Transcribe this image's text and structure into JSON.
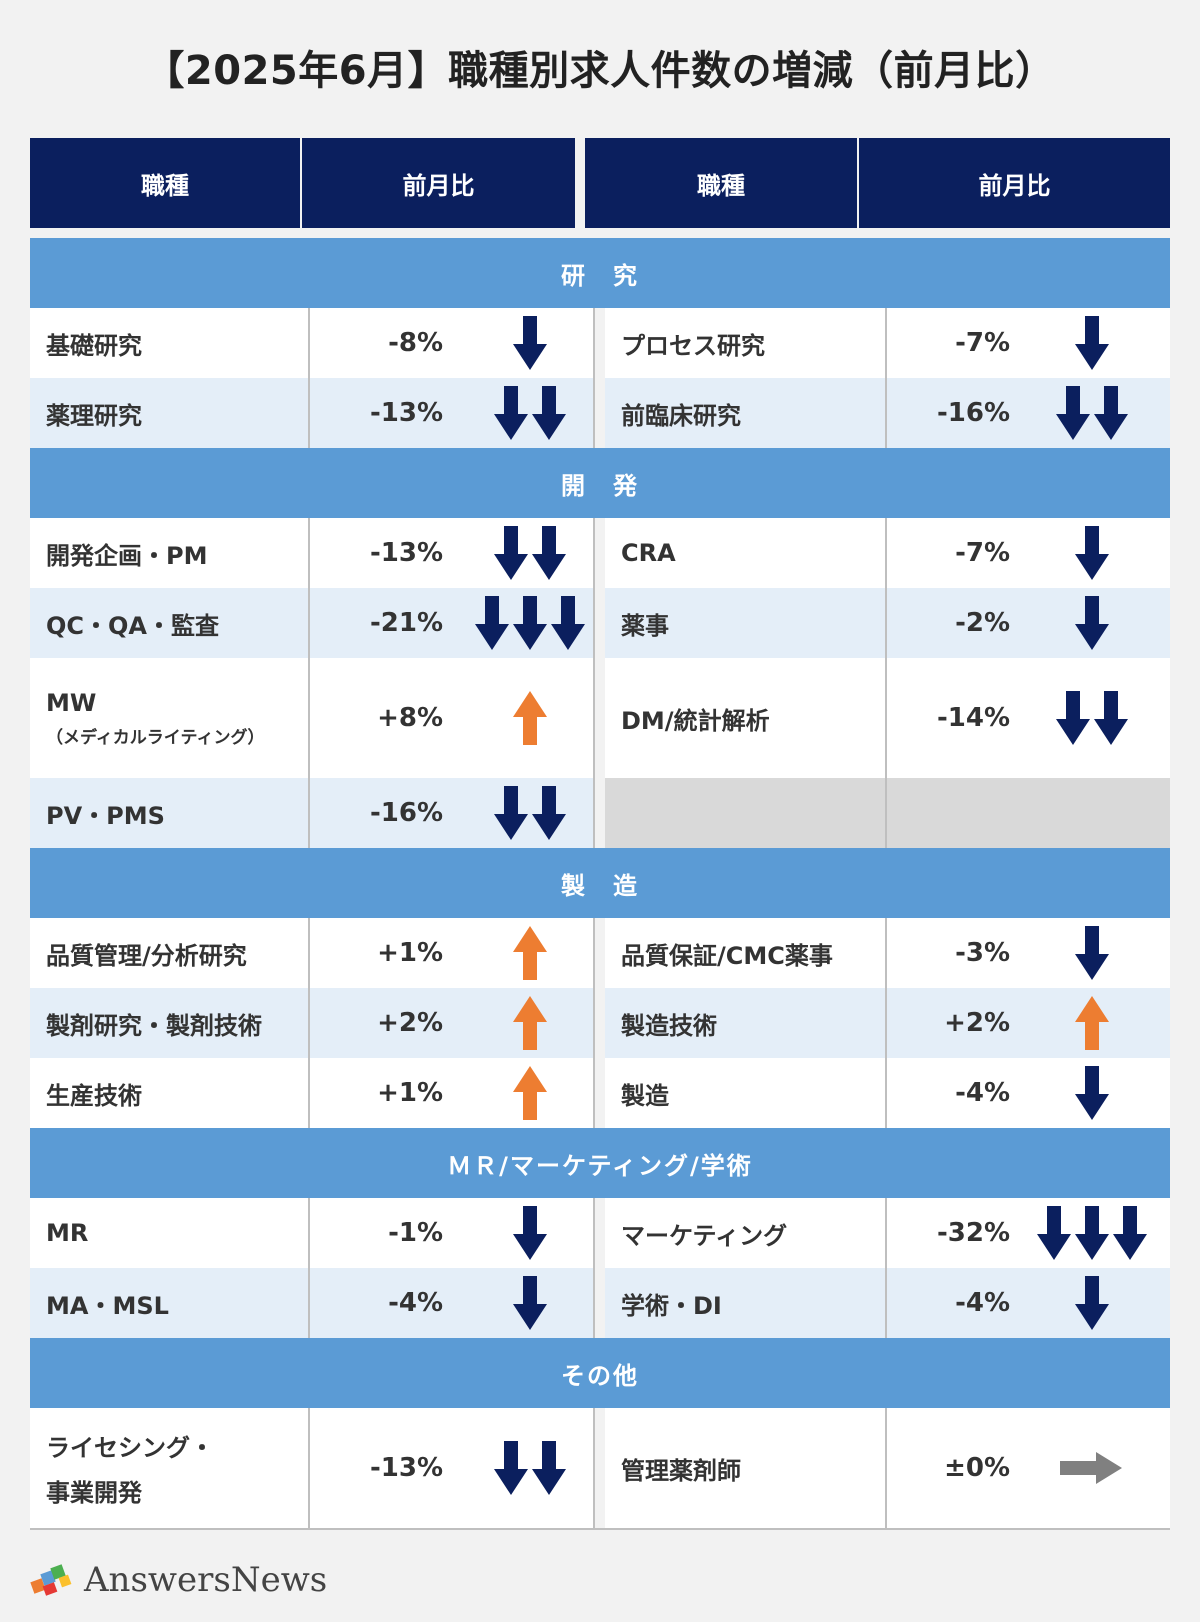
{
  "title": "【2025年6月】職種別求人件数の増減（前月比）",
  "header": {
    "col_job": "職種",
    "col_ratio": "前月比"
  },
  "colors": {
    "down": "#0b1f5e",
    "up": "#ed7d31",
    "flat": "#808080",
    "header_bg": "#0b1f5e",
    "section_bg": "#5b9bd5"
  },
  "sections": [
    {
      "title": "研　究",
      "rows": [
        {
          "left": {
            "name": "基礎研究",
            "value": "-8%",
            "trend": "down",
            "arrows": 1
          },
          "right": {
            "name": "プロセス研究",
            "value": "-7%",
            "trend": "down",
            "arrows": 1
          }
        },
        {
          "left": {
            "name": "薬理研究",
            "value": "-13%",
            "trend": "down",
            "arrows": 2
          },
          "right": {
            "name": "前臨床研究",
            "value": "-16%",
            "trend": "down",
            "arrows": 2
          }
        }
      ]
    },
    {
      "title": "開　発",
      "rows": [
        {
          "left": {
            "name": "開発企画・PM",
            "value": "-13%",
            "trend": "down",
            "arrows": 2
          },
          "right": {
            "name": "CRA",
            "value": "-7%",
            "trend": "down",
            "arrows": 1
          }
        },
        {
          "left": {
            "name": "QC・QA・監査",
            "value": "-21%",
            "trend": "down",
            "arrows": 3
          },
          "right": {
            "name": "薬事",
            "value": "-2%",
            "trend": "down",
            "arrows": 1
          }
        },
        {
          "tall": true,
          "left": {
            "name": "MW",
            "sub": "（メディカルライティング）",
            "value": "+8%",
            "trend": "up",
            "arrows": 1
          },
          "right": {
            "name": "DM/統計解析",
            "value": "-14%",
            "trend": "down",
            "arrows": 2
          }
        },
        {
          "left": {
            "name": "PV・PMS",
            "value": "-16%",
            "trend": "down",
            "arrows": 2
          },
          "right": null
        }
      ]
    },
    {
      "title": "製　造",
      "rows": [
        {
          "left": {
            "name": "品質管理/分析研究",
            "value": "+1%",
            "trend": "up",
            "arrows": 1
          },
          "right": {
            "name": "品質保証/CMC薬事",
            "value": "-3%",
            "trend": "down",
            "arrows": 1
          }
        },
        {
          "left": {
            "name": "製剤研究・製剤技術",
            "value": "+2%",
            "trend": "up",
            "arrows": 1
          },
          "right": {
            "name": "製造技術",
            "value": "+2%",
            "trend": "up",
            "arrows": 1
          }
        },
        {
          "left": {
            "name": "生産技術",
            "value": "+1%",
            "trend": "up",
            "arrows": 1
          },
          "right": {
            "name": "製造",
            "value": "-4%",
            "trend": "down",
            "arrows": 1
          }
        }
      ]
    },
    {
      "title": "ＭＲ/マーケティング/学術",
      "rows": [
        {
          "left": {
            "name": "MR",
            "value": "-1%",
            "trend": "down",
            "arrows": 1
          },
          "right": {
            "name": "マーケティング",
            "value": "-32%",
            "trend": "down",
            "arrows": 3
          }
        },
        {
          "left": {
            "name": "MA・MSL",
            "value": "-4%",
            "trend": "down",
            "arrows": 1
          },
          "right": {
            "name": "学術・DI",
            "value": "-4%",
            "trend": "down",
            "arrows": 1
          }
        }
      ]
    },
    {
      "title": "その他",
      "rows": [
        {
          "tall": true,
          "left": {
            "name": "ライセシング・",
            "sub2": "事業開発",
            "value": "-13%",
            "trend": "down",
            "arrows": 2
          },
          "right": {
            "name": "管理薬剤師",
            "value": "±0%",
            "trend": "flat",
            "arrows": 1
          }
        }
      ]
    }
  ],
  "logo": {
    "text": "AnswersNews",
    "icon": "puzzle-logo-icon"
  }
}
